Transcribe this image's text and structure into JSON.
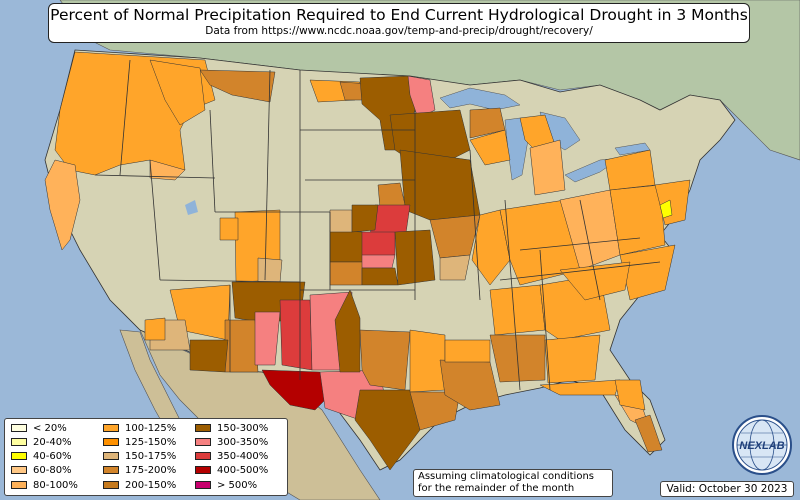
{
  "title": "Percent of Normal Precipitation Required to End Current Hydrological Drought in 3 Months",
  "subtitle": "Data from https://www.ncdc.noaa.gov/temp-and-precip/drought/recovery/",
  "note": {
    "line1": "Assuming climatological conditions",
    "line2": "for the remainder of the month"
  },
  "valid": "Valid: October 30 2023",
  "logo": {
    "text": "NEXLAB",
    "icon": "globe-icon"
  },
  "colors": {
    "ocean": "#9bb8d8",
    "land": "#d6d3b4",
    "canada": "#b4c6a6",
    "mexico": "#cdbf97",
    "lakes": "#8fb3d9"
  },
  "legend": [
    {
      "label": "< 20%",
      "color": "#ffffe0"
    },
    {
      "label": "20-40%",
      "color": "#ffffa0"
    },
    {
      "label": "40-60%",
      "color": "#ffff00"
    },
    {
      "label": "60-80%",
      "color": "#ffc784"
    },
    {
      "label": "80-100%",
      "color": "#ffb25a"
    },
    {
      "label": "100-125%",
      "color": "#ffa52a"
    },
    {
      "label": "125-150%",
      "color": "#ff9100"
    },
    {
      "label": "150-175%",
      "color": "#deb57a"
    },
    {
      "label": "175-200%",
      "color": "#d2842b"
    },
    {
      "label": "200-150%",
      "color": "#c67a1e"
    },
    {
      "label": "150-300%",
      "color": "#9c5d00"
    },
    {
      "label": "300-350%",
      "color": "#f58080"
    },
    {
      "label": "350-400%",
      "color": "#dc3c3c"
    },
    {
      "label": "400-500%",
      "color": "#b40000"
    },
    {
      "label": "> 500%",
      "color": "#c8006e"
    }
  ]
}
